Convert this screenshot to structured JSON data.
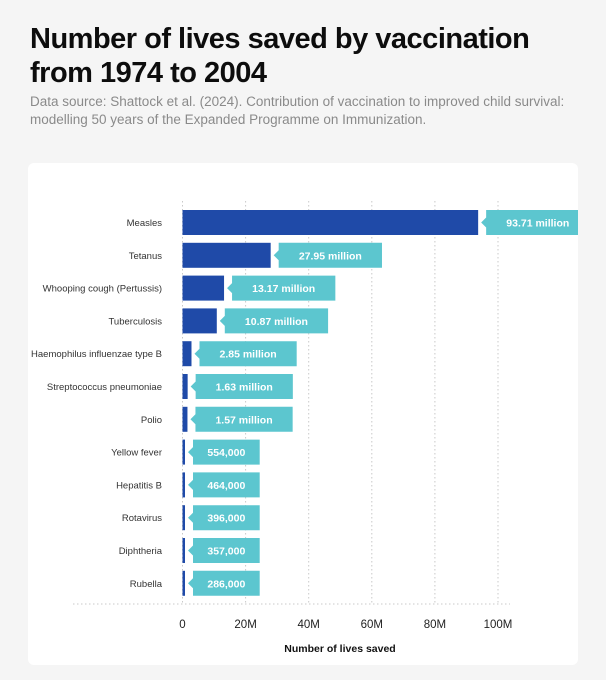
{
  "title": "Number of lives saved by vaccination from 1974 to 2004",
  "subtitle": "Data source: Shattock et al. (2024). Contribution of vaccination to improved child survival: modelling 50 years of the Expanded Programme on Immunization.",
  "colors": {
    "bar": "#1f4aa8",
    "label_bg": "#5cc6cf",
    "grid": "#c9c9c9",
    "card": "#ffffff",
    "page": "#f5f5f5"
  },
  "chart_data": {
    "type": "bar",
    "orientation": "horizontal",
    "categories": [
      "Measles",
      "Tetanus",
      "Whooping cough (Pertussis)",
      "Tuberculosis",
      "Haemophilus influenzae type B",
      "Streptococcus pneumoniae",
      "Polio",
      "Yellow fever",
      "Hepatitis B",
      "Rotavirus",
      "Diphtheria",
      "Rubella"
    ],
    "values": [
      93710000,
      27950000,
      13170000,
      10870000,
      2850000,
      1630000,
      1570000,
      554000,
      464000,
      396000,
      357000,
      286000
    ],
    "data_labels": [
      "93.71 million",
      "27.95 million",
      "13.17 million",
      "10.87 million",
      "2.85 million",
      "1.63 million",
      "1.57 million",
      "554,000",
      "464,000",
      "396,000",
      "357,000",
      "286,000"
    ],
    "x_ticks": [
      0,
      20000000,
      40000000,
      60000000,
      80000000,
      100000000
    ],
    "x_tick_labels": [
      "0",
      "20M",
      "40M",
      "60M",
      "80M",
      "100M"
    ],
    "xlabel": "Number of lives saved",
    "ylabel": "",
    "xlim": [
      0,
      100000000
    ],
    "grid": "vertical dotted",
    "legend": "none"
  }
}
